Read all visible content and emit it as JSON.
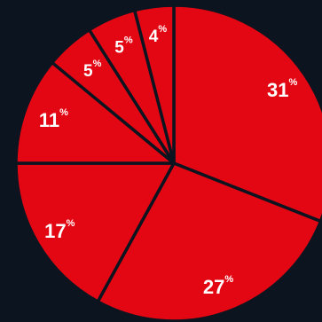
{
  "colors": {
    "background": "#0c1420",
    "slice": "#e30613",
    "separator": "#0c1420",
    "label": "#ffffff"
  },
  "chart_data": {
    "type": "pie",
    "title": "",
    "legend": "none",
    "start": "12 o'clock",
    "direction": "clockwise",
    "slices": [
      {
        "label": "31",
        "suffix": "%",
        "value": 31
      },
      {
        "label": "27",
        "suffix": "%",
        "value": 27
      },
      {
        "label": "17",
        "suffix": "%",
        "value": 17
      },
      {
        "label": "11",
        "suffix": "%",
        "value": 11
      },
      {
        "label": "5",
        "suffix": "%",
        "value": 5
      },
      {
        "label": "5",
        "suffix": "%",
        "value": 5
      },
      {
        "label": "4",
        "suffix": "%",
        "value": 4
      }
    ]
  }
}
